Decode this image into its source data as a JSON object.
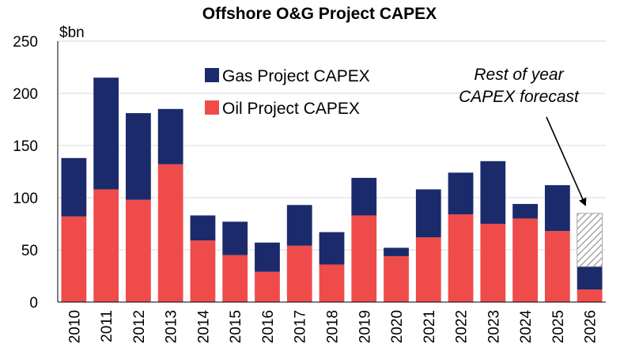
{
  "chart_data": {
    "type": "bar",
    "stacked": true,
    "title": "Offshore O&G Project CAPEX",
    "ylabel": "$bn",
    "xlabel": "",
    "ylim": [
      0,
      250
    ],
    "yticks": [
      0,
      50,
      100,
      150,
      200,
      250
    ],
    "grid": true,
    "legend_position": "top-left",
    "categories": [
      "2010",
      "2011",
      "2012",
      "2013",
      "2014",
      "2015",
      "2016",
      "2017",
      "2018",
      "2019",
      "2020",
      "2021",
      "2022",
      "2023",
      "2024",
      "2025",
      "2026"
    ],
    "series": [
      {
        "name": "Oil Project CAPEX",
        "color": "#EF4B4B",
        "values": [
          82,
          108,
          98,
          132,
          59,
          45,
          29,
          54,
          36,
          83,
          44,
          62,
          84,
          75,
          80,
          68,
          12
        ]
      },
      {
        "name": "Gas Project CAPEX",
        "color": "#1B2A6B",
        "values": [
          56,
          107,
          83,
          53,
          24,
          32,
          28,
          39,
          31,
          36,
          8,
          46,
          40,
          60,
          14,
          44,
          22
        ]
      },
      {
        "name": "Rest of year CAPEX forecast",
        "pattern": "hatched",
        "values": [
          0,
          0,
          0,
          0,
          0,
          0,
          0,
          0,
          0,
          0,
          0,
          0,
          0,
          0,
          0,
          0,
          51
        ]
      }
    ],
    "annotation": {
      "lines": [
        "Rest of year",
        "CAPEX forecast"
      ],
      "points_to": "2026"
    }
  }
}
